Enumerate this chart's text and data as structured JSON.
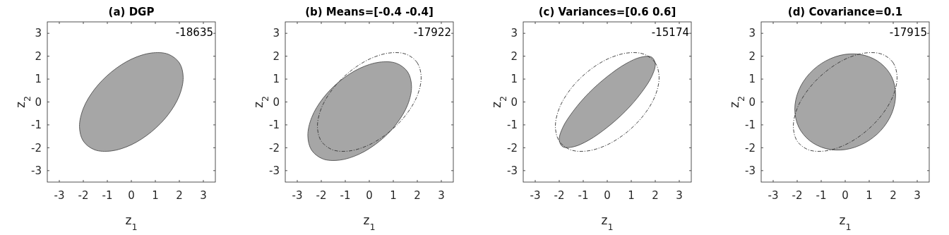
{
  "chart_data": [
    {
      "type": "area",
      "title": "(a) DGP",
      "xlabel": "z$_{1}$",
      "ylabel": "z$_{2}$",
      "xlim": [
        -3.5,
        3.5
      ],
      "ylim": [
        -3.5,
        3.5
      ],
      "xticks": [
        -3,
        -2,
        -1,
        0,
        1,
        2,
        3
      ],
      "yticks": [
        -3,
        -2,
        -1,
        0,
        1,
        2,
        3
      ],
      "annotations": [
        "-18635"
      ],
      "series": [
        {
          "color": "#a6a6a6",
          "x": [
            2.16,
            2.0,
            1.53,
            0.83,
            0,
            -0.83,
            -1.53,
            -2.0,
            -2.16,
            -2.0,
            -1.53,
            -0.83,
            0,
            0.83,
            1.53,
            2.0
          ],
          "values": [
            1.08,
            1.71,
            2.09,
            2.14,
            1.87,
            1.31,
            0.56,
            -0.28,
            -1.08,
            -1.71,
            -2.09,
            -2.14,
            -1.87,
            -1.31,
            -0.56,
            0.28
          ]
        }
      ]
    },
    {
      "type": "area",
      "title": "(b) Means=[-0.4 -0.4]",
      "xlabel": "z$_{1}$",
      "ylabel": "z$_{2}$",
      "xlim": [
        -3.5,
        3.5
      ],
      "ylim": [
        -3.5,
        3.5
      ],
      "xticks": [
        -3,
        -2,
        -1,
        0,
        1,
        2,
        3
      ],
      "yticks": [
        -3,
        -2,
        -1,
        0,
        1,
        2,
        3
      ],
      "annotations": [
        "-17922"
      ],
      "series": [
        {
          "color": "#a6a6a6",
          "x": [
            1.76,
            1.6,
            1.13,
            0.43,
            -0.4,
            -1.23,
            -1.93,
            -2.4,
            -2.56,
            -2.4,
            -1.93,
            -1.23,
            -0.4,
            0.43,
            1.13,
            1.6
          ],
          "values": [
            0.68,
            1.31,
            1.69,
            1.74,
            1.47,
            0.91,
            0.16,
            -0.68,
            -1.48,
            -2.11,
            -2.49,
            -2.54,
            -2.27,
            -1.71,
            -0.96,
            -0.12
          ]
        }
      ]
    },
    {
      "type": "area",
      "title": "(c) Variances=[0.6 0.6]",
      "xlabel": "z$_{1}$",
      "ylabel": "z$_{2}$",
      "xlim": [
        -3.5,
        3.5
      ],
      "ylim": [
        -3.5,
        3.5
      ],
      "xticks": [
        -3,
        -2,
        -1,
        0,
        1,
        2,
        3
      ],
      "yticks": [
        -3,
        -2,
        -1,
        0,
        1,
        2,
        3
      ],
      "annotations": [
        "-15174"
      ],
      "series": [
        {
          "color": "#a6a6a6",
          "x": [
            2.0,
            1.85,
            1.41,
            0.77,
            0,
            -0.77,
            -1.41,
            -1.85,
            -2.0,
            -1.85,
            -1.41,
            -0.77,
            0,
            0.77,
            1.41,
            1.85
          ],
          "values": [
            1.66,
            1.96,
            1.96,
            1.67,
            1.11,
            0.39,
            -0.39,
            -1.11,
            -1.66,
            -1.96,
            -1.96,
            -1.67,
            -1.11,
            -0.39,
            0.39,
            1.11
          ]
        }
      ]
    },
    {
      "type": "area",
      "title": "(d) Covariance=0.1",
      "xlabel": "z$_{1}$",
      "ylabel": "z$_{2}$",
      "xlim": [
        -3.5,
        3.5
      ],
      "ylim": [
        -3.5,
        3.5
      ],
      "xticks": [
        -3,
        -2,
        -1,
        0,
        1,
        2,
        3
      ],
      "yticks": [
        -3,
        -2,
        -1,
        0,
        1,
        2,
        3
      ],
      "annotations": [
        "-17915"
      ],
      "series": [
        {
          "color": "#a6a6a6",
          "x": [
            2.1,
            1.94,
            1.48,
            0.8,
            0,
            -0.8,
            -1.48,
            -1.94,
            -2.1,
            -1.94,
            -1.48,
            -0.8,
            0,
            0.8,
            1.48,
            1.94
          ],
          "values": [
            0.32,
            1.09,
            1.69,
            2.04,
            2.08,
            1.8,
            1.25,
            0.5,
            -0.32,
            -1.09,
            -1.69,
            -2.04,
            -2.08,
            -1.8,
            -1.25,
            -0.5
          ]
        }
      ]
    }
  ]
}
